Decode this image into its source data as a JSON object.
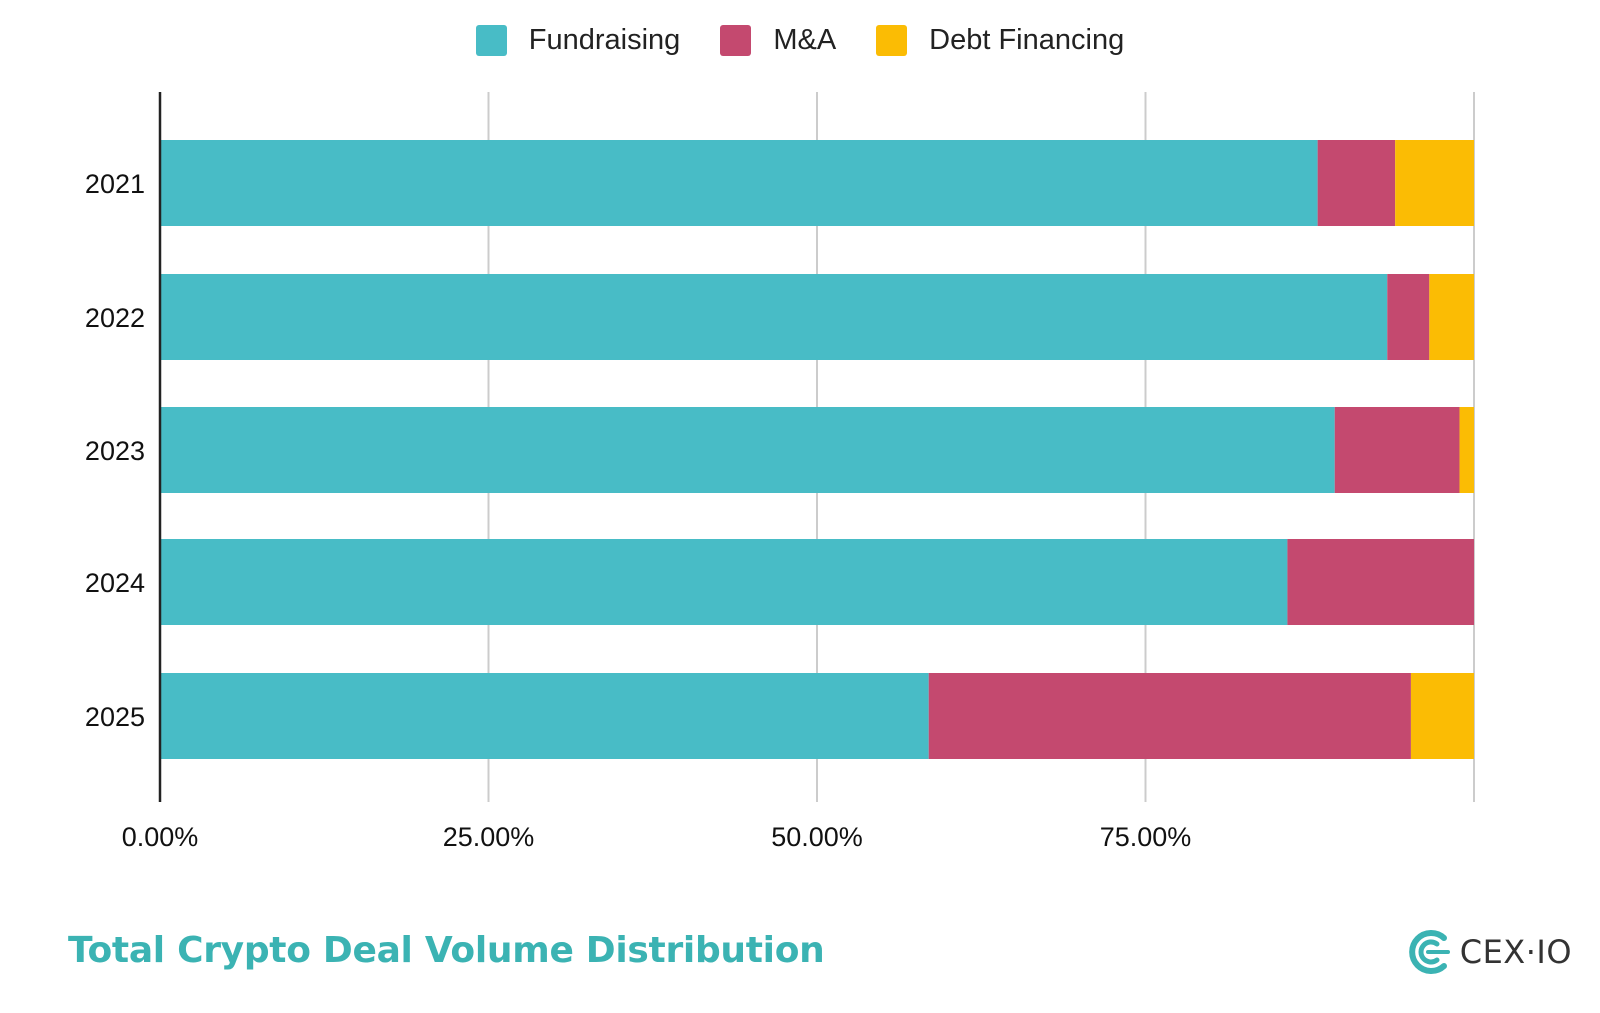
{
  "chart_data": {
    "type": "bar",
    "orientation": "horizontal",
    "stacked": true,
    "title": "Total Crypto Deal Volume Distribution",
    "categories": [
      "2021",
      "2022",
      "2023",
      "2024",
      "2025"
    ],
    "series": [
      {
        "name": "Fundraising",
        "color": "#48bcc6",
        "values": [
          88.1,
          93.4,
          89.4,
          85.8,
          58.5
        ]
      },
      {
        "name": "M&A",
        "color": "#c4496f",
        "values": [
          5.9,
          3.2,
          9.5,
          14.2,
          36.7
        ]
      },
      {
        "name": "Debt Financing",
        "color": "#fbbc04",
        "values": [
          6.0,
          3.4,
          1.1,
          0.0,
          4.8
        ]
      }
    ],
    "xlim": [
      0,
      100
    ],
    "x_ticks": [
      "0.00%",
      "25.00%",
      "50.00%",
      "75.00%"
    ],
    "x_tick_values": [
      0,
      25,
      50,
      75
    ],
    "grid": true,
    "legend_position": "top-center"
  },
  "brand": {
    "name": "CEX·IO",
    "logo_icon": "cex-io-logo-icon",
    "color": "#3bb3b3"
  }
}
